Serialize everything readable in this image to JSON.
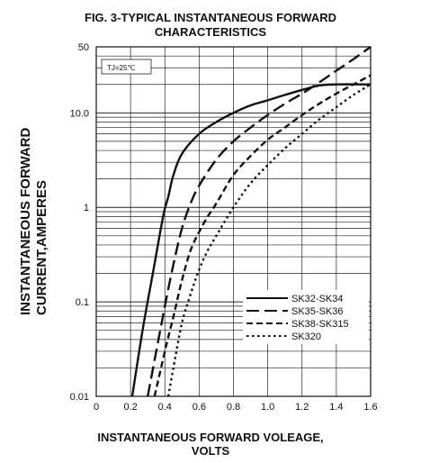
{
  "chart_data": {
    "type": "line",
    "title_lines": [
      "FIG. 3-TYPICAL INSTANTANEOUS FORWARD",
      "CHARACTERISTICS"
    ],
    "xlabel_lines": [
      "INSTANTANEOUS FORWARD VOLEAGE,",
      "VOLTS"
    ],
    "ylabel_lines": [
      "INSTANTANEOUS FORWARD",
      "CURRENT,AMPERES"
    ],
    "annotation": "TJ=25℃",
    "x_scale": "linear",
    "y_scale": "log",
    "xlim": [
      0,
      1.6
    ],
    "ylim": [
      0.01,
      50
    ],
    "x_ticks": [
      0,
      0.2,
      0.4,
      0.6,
      0.8,
      1.0,
      1.2,
      1.4,
      1.6
    ],
    "x_tick_labels": [
      "0",
      "0.2",
      "0.4",
      "0.6",
      "0.8",
      "1.0",
      "1.2",
      "1.4",
      "1.6"
    ],
    "y_ticks": [
      0.01,
      0.1,
      1,
      10,
      50
    ],
    "y_tick_labels": [
      "0.01",
      "0.1",
      "1",
      "10.0",
      "50"
    ],
    "grid": true,
    "legend_position": "bottom-right",
    "series": [
      {
        "name": "SK32-SK34",
        "style": "solid",
        "x": [
          0.21,
          0.27,
          0.33,
          0.39,
          0.42,
          0.45,
          0.5,
          0.6,
          0.7,
          0.8,
          0.9,
          1.0,
          1.1,
          1.2,
          1.3,
          1.4,
          1.6
        ],
        "y": [
          0.01,
          0.05,
          0.2,
          0.8,
          1.3,
          2.2,
          3.7,
          6.0,
          8.0,
          10.0,
          12.0,
          13.6,
          15.5,
          17.5,
          19.5,
          20.0,
          20.0
        ]
      },
      {
        "name": "SK35-SK36",
        "style": "long-dash",
        "x": [
          0.3,
          0.35,
          0.4,
          0.45,
          0.5,
          0.55,
          0.6,
          0.7,
          0.8,
          0.9,
          1.0,
          1.1,
          1.2,
          1.3,
          1.4,
          1.5,
          1.6
        ],
        "y": [
          0.01,
          0.03,
          0.09,
          0.25,
          0.6,
          1.1,
          1.7,
          3.2,
          5.0,
          7.0,
          9.5,
          12.5,
          16.0,
          21.0,
          28.0,
          37.0,
          50.0
        ]
      },
      {
        "name": "SK38-SK315",
        "style": "short-dash",
        "x": [
          0.34,
          0.4,
          0.45,
          0.5,
          0.55,
          0.6,
          0.65,
          0.7,
          0.8,
          0.9,
          1.0,
          1.1,
          1.2,
          1.3,
          1.4,
          1.5,
          1.6
        ],
        "y": [
          0.01,
          0.03,
          0.07,
          0.17,
          0.35,
          0.55,
          0.8,
          1.1,
          2.2,
          3.5,
          5.2,
          7.0,
          9.5,
          12.5,
          16.0,
          20.0,
          25.0
        ]
      },
      {
        "name": "SK320",
        "style": "dotted",
        "x": [
          0.42,
          0.45,
          0.5,
          0.55,
          0.6,
          0.65,
          0.7,
          0.8,
          0.9,
          1.0,
          1.1,
          1.2,
          1.3,
          1.4,
          1.5,
          1.6
        ],
        "y": [
          0.01,
          0.02,
          0.06,
          0.12,
          0.22,
          0.35,
          0.5,
          1.0,
          1.8,
          2.8,
          4.2,
          6.0,
          8.5,
          11.5,
          15.5,
          20.0
        ]
      }
    ]
  }
}
